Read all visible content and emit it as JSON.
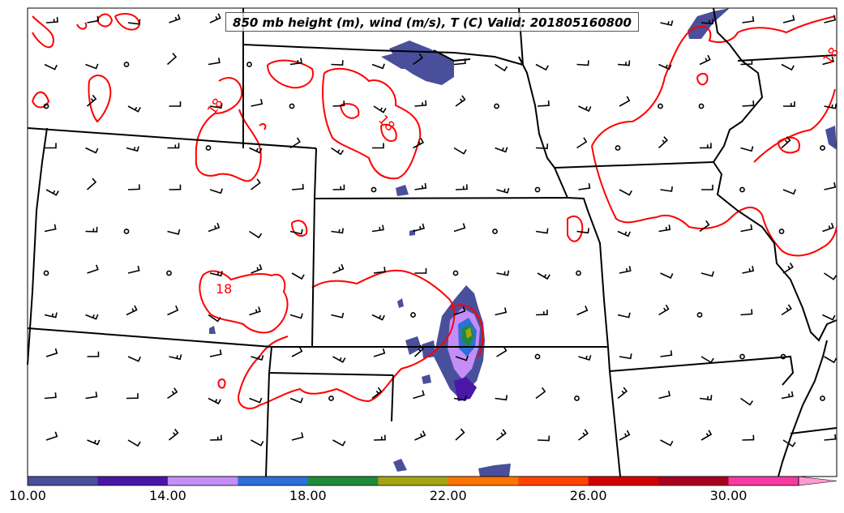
{
  "title": "850 mb height (m), wind (m/s), T (C) Valid: 201805160800",
  "contour_labels": [
    "18",
    "18",
    "18",
    "18"
  ],
  "colorbar": {
    "tick_labels": [
      "10.00",
      "14.00",
      "18.00",
      "22.00",
      "26.00",
      "30.00"
    ],
    "colors": [
      "#4a4f9b",
      "#4a16a8",
      "#c58df7",
      "#2d6fdb",
      "#1f8a3a",
      "#a4a512",
      "#ff7300",
      "#ff4400",
      "#d40000",
      "#a80020",
      "#f73aa2",
      "#ff9ad2"
    ]
  },
  "colors": {
    "temperature_contour": "#ff0000",
    "boundaries": "#000000",
    "barbs": "#000000"
  }
}
